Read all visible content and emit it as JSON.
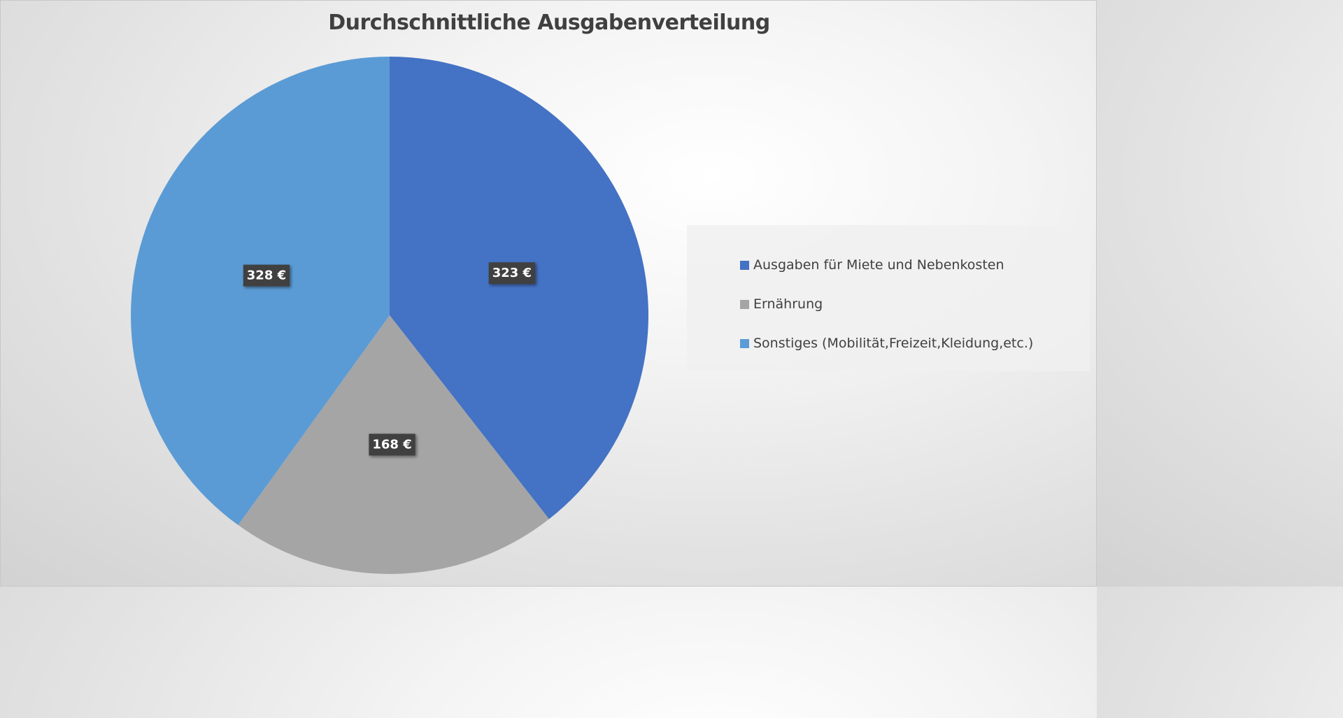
{
  "chart_data": {
    "type": "pie",
    "title": "Durchschnittliche Ausgabenverteilung",
    "categories": [
      "Ausgaben für Miete und Nebenkosten",
      "Ernährung",
      "Sonstiges (Mobilität,Freizeit,Kleidung,etc.)"
    ],
    "values": [
      323,
      168,
      328
    ],
    "data_labels": [
      "323 €",
      "168 €",
      "328 €"
    ],
    "colors": [
      "#4472c4",
      "#a5a5a5",
      "#5b9bd5"
    ],
    "legend_position": "right",
    "start_angle_deg": 0,
    "direction": "clockwise"
  }
}
